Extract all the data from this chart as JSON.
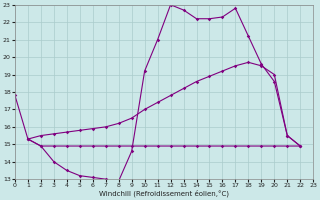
{
  "xlabel": "Windchill (Refroidissement éolien,°C)",
  "xlim": [
    0,
    23
  ],
  "ylim": [
    13,
    23
  ],
  "yticks": [
    13,
    14,
    15,
    16,
    17,
    18,
    19,
    20,
    21,
    22,
    23
  ],
  "xticks": [
    0,
    1,
    2,
    3,
    4,
    5,
    6,
    7,
    8,
    9,
    10,
    11,
    12,
    13,
    14,
    15,
    16,
    17,
    18,
    19,
    20,
    21,
    22,
    23
  ],
  "background_color": "#cce8e8",
  "grid_color": "#aacccc",
  "line_color": "#800080",
  "line1_x": [
    0,
    1,
    2,
    3,
    4,
    5,
    6,
    7,
    8,
    9,
    10,
    11,
    12,
    13,
    14,
    15,
    16,
    17,
    18,
    19,
    20,
    21,
    22
  ],
  "line1_y": [
    17.8,
    15.3,
    14.9,
    14.0,
    13.5,
    13.2,
    13.1,
    13.0,
    12.9,
    14.6,
    19.2,
    21.0,
    23.0,
    22.7,
    22.2,
    22.2,
    22.3,
    22.8,
    21.2,
    19.6,
    18.6,
    15.5,
    14.9
  ],
  "line2_x": [
    1,
    2,
    3,
    4,
    5,
    6,
    7,
    8,
    9,
    10,
    11,
    12,
    13,
    14,
    15,
    16,
    17,
    18,
    19,
    20,
    21,
    22
  ],
  "line2_y": [
    15.3,
    15.5,
    15.6,
    15.7,
    15.8,
    15.9,
    16.0,
    16.2,
    16.5,
    17.0,
    17.4,
    17.8,
    18.2,
    18.6,
    18.9,
    19.2,
    19.5,
    19.7,
    19.5,
    19.0,
    15.5,
    14.9
  ],
  "line3_x": [
    1,
    2,
    3,
    4,
    5,
    6,
    7,
    8,
    9,
    10,
    11,
    12,
    13,
    14,
    15,
    16,
    17,
    18,
    19,
    20,
    21,
    22
  ],
  "line3_y": [
    15.3,
    14.9,
    14.9,
    14.9,
    14.9,
    14.9,
    14.9,
    14.9,
    14.9,
    14.9,
    14.9,
    14.9,
    14.9,
    14.9,
    14.9,
    14.9,
    14.9,
    14.9,
    14.9,
    14.9,
    14.9,
    14.9
  ],
  "marker": "D",
  "markersize": 1.8,
  "linewidth": 0.8
}
